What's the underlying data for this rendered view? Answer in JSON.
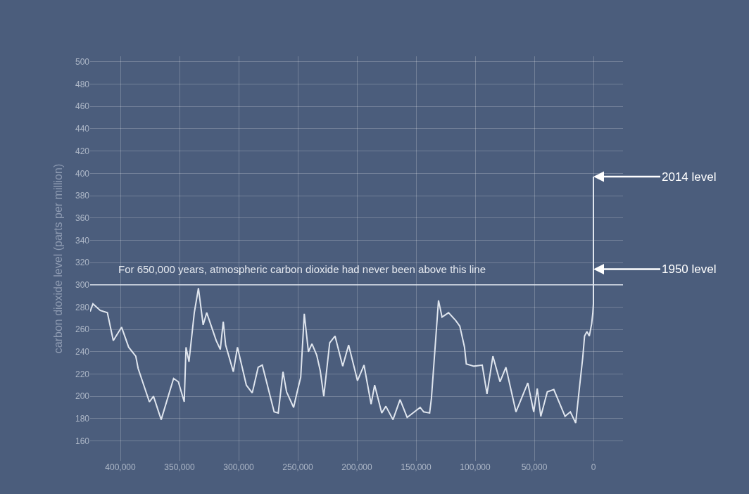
{
  "chart_data": {
    "type": "line",
    "ylabel": "carbon dioxide level (parts per million)",
    "x": [
      425600,
      423200,
      417000,
      411000,
      406000,
      399000,
      393000,
      387000,
      385000,
      375500,
      372000,
      365500,
      355000,
      351000,
      346000,
      344500,
      342000,
      337500,
      334000,
      330000,
      327000,
      319000,
      315500,
      313000,
      311000,
      304500,
      301000,
      293500,
      288500,
      283500,
      280000,
      270000,
      266500,
      262500,
      259500,
      253500,
      250500,
      247500,
      244500,
      241000,
      238000,
      234000,
      231000,
      228000,
      223000,
      218500,
      212000,
      207000,
      199500,
      194000,
      188000,
      185000,
      179000,
      175500,
      169500,
      163500,
      157500,
      146500,
      143500,
      138500,
      137000,
      131000,
      128000,
      122500,
      116500,
      113000,
      109000,
      107500,
      101000,
      94000,
      90000,
      85000,
      79000,
      74000,
      65500,
      55500,
      50500,
      47500,
      44500,
      39000,
      33500,
      24000,
      19500,
      15000,
      12000,
      9000,
      7500,
      5500,
      3500,
      1500,
      500,
      0,
      0
    ],
    "series": [
      {
        "color": "#dfe5ee",
        "values": [
          276,
          283,
          277,
          275,
          250,
          262,
          244,
          236,
          225,
          195,
          200,
          179,
          216,
          213,
          195,
          244,
          231,
          275,
          297,
          264,
          275,
          250,
          242,
          267,
          246,
          222,
          244,
          210,
          203,
          226,
          228,
          186,
          185,
          222,
          204,
          190,
          204,
          217,
          274,
          240,
          247,
          237,
          223,
          200,
          248,
          254,
          227,
          246,
          214,
          228,
          193,
          210,
          185,
          191,
          179,
          197,
          181,
          190,
          186,
          185,
          198,
          286,
          271,
          275,
          268,
          263,
          244,
          229,
          227,
          228,
          202,
          236,
          213,
          226,
          186,
          212,
          186,
          207,
          182,
          204,
          206,
          182,
          186,
          176,
          206,
          235,
          254,
          258,
          254,
          265,
          275,
          283,
          397
        ]
      }
    ],
    "xlim": [
      425600,
      -25000
    ],
    "xticks": [
      {
        "value": 400000,
        "label": "400,000"
      },
      {
        "value": 350000,
        "label": "350,000"
      },
      {
        "value": 300000,
        "label": "300,000"
      },
      {
        "value": 250000,
        "label": "250,000"
      },
      {
        "value": 200000,
        "label": "200,000"
      },
      {
        "value": 150000,
        "label": "150,000"
      },
      {
        "value": 100000,
        "label": "100,000"
      },
      {
        "value": 50000,
        "label": "50,000"
      },
      0
    ],
    "ylim": [
      142,
      505
    ],
    "yticks": [
      160,
      180,
      200,
      220,
      240,
      260,
      280,
      300,
      320,
      340,
      360,
      380,
      400,
      420,
      440,
      460,
      480,
      500
    ],
    "grid": true,
    "ref_lines": [
      {
        "axis": "y",
        "value": 300,
        "label": "For 650,000 years, atmospheric carbon dioxide had never been above this line",
        "color": "#dfe5ee"
      }
    ],
    "annotations": [
      {
        "text": "2014 level",
        "x": 0,
        "y": 397
      },
      {
        "text": "1950 level",
        "x": 0,
        "y": 314
      }
    ]
  }
}
